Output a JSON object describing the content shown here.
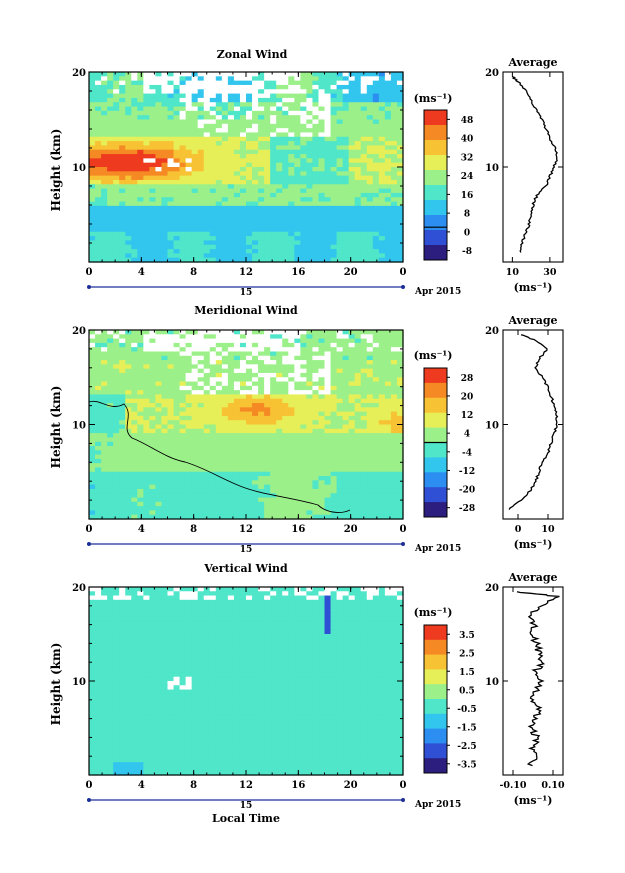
{
  "chart_data": [
    {
      "type": "heatmap",
      "title": "Zonal Wind",
      "ylabel": "Height (km)",
      "yticks": [
        "20",
        "10"
      ],
      "xticks": [
        "0",
        "4",
        "8",
        "12",
        "16",
        "20",
        "0"
      ],
      "date_label": "15",
      "date_suffix": "Apr 2015",
      "ylim": [
        0,
        20
      ],
      "colorbar": {
        "unit": "(ms⁻¹)",
        "ticks": [
          "48",
          "40",
          "32",
          "24",
          "16",
          "8",
          "0",
          "-8"
        ],
        "range": [
          -12,
          52
        ]
      },
      "profile": {
        "title": "Average",
        "xticks": [
          "10",
          "30"
        ],
        "xlim": [
          5,
          37
        ],
        "unit": "(ms⁻¹)",
        "yticks": [
          "20",
          "10"
        ],
        "heights": [
          1,
          2,
          3,
          4,
          5,
          6,
          7,
          8,
          9,
          10,
          11,
          12,
          13,
          14,
          15,
          16,
          17,
          18,
          19,
          19.5
        ],
        "values": [
          14,
          15,
          17,
          19,
          20,
          21,
          23,
          28,
          30,
          32,
          34,
          33,
          30,
          28,
          26,
          23,
          20,
          17,
          13,
          10
        ]
      }
    },
    {
      "type": "heatmap",
      "title": "Meridional Wind",
      "ylabel": "Height (km)",
      "yticks": [
        "20",
        "10"
      ],
      "xticks": [
        "0",
        "4",
        "8",
        "12",
        "16",
        "20",
        "0"
      ],
      "date_label": "15",
      "date_suffix": "Apr 2015",
      "ylim": [
        0,
        20
      ],
      "colorbar": {
        "unit": "(ms⁻¹)",
        "ticks": [
          "28",
          "20",
          "12",
          "4",
          "-4",
          "-12",
          "-20",
          "-28"
        ],
        "range": [
          -32,
          32
        ]
      },
      "profile": {
        "title": "Average",
        "xticks": [
          "0",
          "10"
        ],
        "xlim": [
          -5,
          15
        ],
        "unit": "(ms⁻¹)",
        "yticks": [
          "20",
          "10"
        ],
        "heights": [
          1,
          2,
          3,
          4,
          5,
          6,
          7,
          8,
          9,
          10,
          11,
          12,
          13,
          14,
          15,
          16,
          17,
          18,
          19,
          19.5
        ],
        "values": [
          -3,
          1,
          4,
          6,
          7,
          8,
          10,
          11,
          12,
          13,
          13,
          12,
          11,
          10,
          8,
          6,
          7,
          10,
          5,
          1
        ]
      }
    },
    {
      "type": "heatmap",
      "title": "Vertical Wind",
      "xlabel": "Local Time",
      "ylabel": "Height (km)",
      "yticks": [
        "20",
        "10"
      ],
      "xticks": [
        "0",
        "4",
        "8",
        "12",
        "16",
        "20",
        "0"
      ],
      "date_label": "15",
      "date_suffix": "Apr 2015",
      "ylim": [
        0,
        20
      ],
      "colorbar": {
        "unit": "(ms⁻¹)",
        "ticks": [
          "3.5",
          "2.5",
          "1.5",
          "0.5",
          "-0.5",
          "-1.5",
          "-2.5",
          "-3.5"
        ],
        "range": [
          -4,
          4
        ]
      },
      "profile": {
        "title": "Average",
        "xticks": [
          "-0.10",
          "0.10"
        ],
        "xlim": [
          -0.15,
          0.15
        ],
        "unit": "(ms⁻¹)",
        "yticks": [
          "20",
          "10"
        ],
        "heights": [
          1,
          2,
          3,
          4,
          5,
          6,
          7,
          8,
          9,
          10,
          11,
          12,
          13,
          14,
          15,
          16,
          17,
          18,
          19,
          19.5
        ],
        "values": [
          -0.01,
          0.01,
          0.0,
          0.02,
          -0.01,
          0.01,
          0.03,
          0.0,
          0.02,
          0.04,
          0.01,
          0.05,
          0.03,
          0.02,
          -0.01,
          0.01,
          -0.02,
          0.04,
          0.12,
          -0.08
        ]
      }
    }
  ],
  "colors": {
    "scale": [
      "#2b1e7e",
      "#2f4fd4",
      "#2b8ef0",
      "#32c6ee",
      "#4fe6c9",
      "#9cf08a",
      "#e6ef58",
      "#f7c233",
      "#f58a24",
      "#ee3b1f"
    ],
    "missing": "#ffffff",
    "axis": "#000000",
    "dateline": "#1f2f9a"
  }
}
